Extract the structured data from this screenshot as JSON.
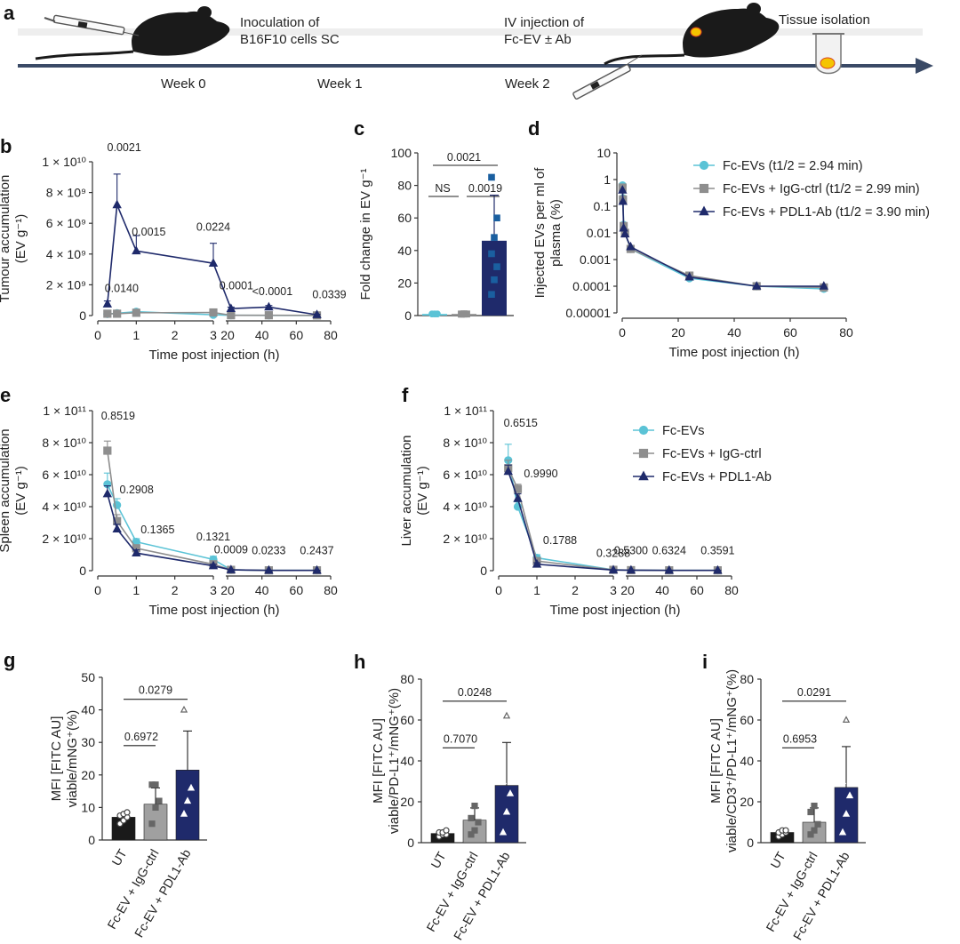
{
  "colors": {
    "cyan": "#5bc3d6",
    "grey": "#8e8e8e",
    "navy": "#1f2a6b",
    "dark": "#1a1a1a",
    "tumour": "#f5c400",
    "arrow": "#3a4a66"
  },
  "timeline": {
    "panel": "a",
    "events": [
      "Inoculation of",
      "B16F10 cells SC",
      "IV injection of",
      "Fc-EV ± Ab",
      "Tissue isolation"
    ],
    "weeks": [
      "Week 0",
      "Week 1",
      "Week 2"
    ]
  },
  "chart_data": [
    {
      "panel": "b",
      "type": "line",
      "ylabel": [
        "Tumour accumulation",
        "(EV g⁻¹)"
      ],
      "xlabel": "Time post injection (h)",
      "xticks": [
        "0",
        "1",
        "2",
        "3",
        "20",
        "40",
        "60",
        "80"
      ],
      "yticks": [
        "0",
        "2 × 10⁹",
        "4 × 10⁹",
        "6 × 10⁹",
        "8 × 10⁹",
        "1 × 10¹⁰"
      ],
      "ylim": [
        0,
        10000000000.0
      ],
      "x": [
        0.25,
        0.5,
        1,
        3,
        22,
        44,
        72
      ],
      "series": [
        {
          "name": "Fc-EVs",
          "color": "#5bc3d6",
          "values": [
            100000000.0,
            150000000.0,
            250000000.0,
            50000000.0,
            20000000.0,
            10000000.0,
            10000000.0
          ],
          "err": [
            50000000.0,
            70000000.0,
            150000000.0,
            60000000.0,
            10000000.0,
            10000000.0,
            10000000.0
          ]
        },
        {
          "name": "Fc-EVs + IgG-ctrl",
          "color": "#8e8e8e",
          "values": [
            120000000.0,
            120000000.0,
            180000000.0,
            200000000.0,
            20000000.0,
            20000000.0,
            10000000.0
          ],
          "err": [
            40000000.0,
            50000000.0,
            60000000.0,
            100000000.0,
            10000000.0,
            10000000.0,
            10000000.0
          ]
        },
        {
          "name": "Fc-EVs + PDL1-Ab",
          "color": "#1f2a6b",
          "values": [
            750000000.0,
            7200000000.0,
            4200000000.0,
            3400000000.0,
            450000000.0,
            550000000.0,
            50000000.0
          ],
          "err": [
            200000000.0,
            2000000000.0,
            1000000000.0,
            1300000000.0,
            100000000.0,
            100000000.0,
            30000000.0
          ]
        }
      ],
      "annotations": [
        "0.0140",
        "0.0021",
        "0.0015",
        "0.0224",
        "0.0001",
        "<0.0001",
        "0.0339"
      ]
    },
    {
      "panel": "c",
      "type": "bar",
      "ylabel": "Fold change in EV g⁻¹",
      "yticks": [
        "0",
        "20",
        "40",
        "60",
        "80",
        "100"
      ],
      "ylim": [
        0,
        100
      ],
      "values": [
        1,
        1,
        46
      ],
      "err": [
        0.3,
        0.3,
        28
      ],
      "colors": [
        "#5bc3d6",
        "#8e8e8e",
        "#1f2a6b"
      ],
      "points": [
        [
          1,
          1,
          1,
          1,
          1,
          1
        ],
        [
          0.8,
          0.9,
          1,
          1,
          1.1,
          0.9
        ],
        [
          13,
          22,
          30,
          38,
          48,
          60,
          85
        ]
      ],
      "brackets": [
        "0.0021",
        "NS",
        "0.0019"
      ]
    },
    {
      "panel": "d",
      "type": "line",
      "scale": "log",
      "ylabel": [
        "Injected EVs per ml of",
        "plasma (%)"
      ],
      "xlabel": "Time post injection (h)",
      "xticks": [
        "0",
        "20",
        "40",
        "60",
        "80"
      ],
      "yticks": [
        "0.00001",
        "0.0001",
        "0.001",
        "0.01",
        "0.1",
        "1",
        "10"
      ],
      "ylim": [
        1e-05,
        10
      ],
      "x": [
        0.1,
        0.25,
        0.5,
        1,
        3,
        24,
        48,
        72
      ],
      "series": [
        {
          "name": "Fc-EVs (t1/2 = 2.94 min)",
          "color": "#5bc3d6",
          "values": [
            0.6,
            0.2,
            0.02,
            0.01,
            0.0025,
            0.0002,
            0.0001,
            8e-05
          ]
        },
        {
          "name": "Fc-EVs + IgG-ctrl (t1/2 = 2.99 min)",
          "color": "#8e8e8e",
          "values": [
            0.5,
            0.18,
            0.018,
            0.01,
            0.0025,
            0.00025,
            0.0001,
            9e-05
          ]
        },
        {
          "name": "Fc-EVs + PDL1-Ab (t1/2 = 3.90 min)",
          "color": "#1f2a6b",
          "values": [
            0.4,
            0.15,
            0.015,
            0.009,
            0.003,
            0.00022,
            0.0001,
            0.0001
          ]
        }
      ]
    },
    {
      "panel": "e",
      "type": "line",
      "ylabel": [
        "Spleen accumulation",
        "(EV g⁻¹)"
      ],
      "xlabel": "Time post injection (h)",
      "xticks": [
        "0",
        "1",
        "2",
        "3",
        "20",
        "40",
        "60",
        "80"
      ],
      "yticks": [
        "0",
        "2 × 10¹⁰",
        "4 × 10¹⁰",
        "6 × 10¹⁰",
        "8 × 10¹⁰",
        "1 × 10¹¹"
      ],
      "ylim": [
        0,
        100000000000.0
      ],
      "x": [
        0.25,
        0.5,
        1,
        3,
        22,
        44,
        72
      ],
      "series": [
        {
          "name": "Fc-EVs",
          "color": "#5bc3d6",
          "values": [
            54000000000.0,
            41000000000.0,
            18000000000.0,
            7000000000.0,
            500000000.0,
            200000000.0,
            200000000.0
          ],
          "err": [
            7000000000.0,
            4000000000.0,
            2000000000.0,
            2000000000.0,
            200000000.0,
            100000000.0,
            100000000.0
          ]
        },
        {
          "name": "Fc-EVs + IgG-ctrl",
          "color": "#8e8e8e",
          "values": [
            75000000000.0,
            31000000000.0,
            14000000000.0,
            4000000000.0,
            500000000.0,
            200000000.0,
            200000000.0
          ],
          "err": [
            6000000000.0,
            4000000000.0,
            2000000000.0,
            1000000000.0,
            200000000.0,
            100000000.0,
            100000000.0
          ]
        },
        {
          "name": "Fc-EVs + PDL1-Ab",
          "color": "#1f2a6b",
          "values": [
            48000000000.0,
            26000000000.0,
            11000000000.0,
            3000000000.0,
            500000000.0,
            200000000.0,
            200000000.0
          ],
          "err": [
            5000000000.0,
            3000000000.0,
            2000000000.0,
            1000000000.0,
            200000000.0,
            100000000.0,
            100000000.0
          ]
        }
      ],
      "annotations": [
        "0.8519",
        "0.2908",
        "0.1365",
        "0.1321",
        "0.0009",
        "0.0233",
        "0.2437"
      ]
    },
    {
      "panel": "f",
      "type": "line",
      "ylabel": [
        "Liver accumulation",
        "(EV g⁻¹)"
      ],
      "xlabel": "Time post injection (h)",
      "xticks": [
        "0",
        "1",
        "2",
        "3",
        "20",
        "40",
        "60",
        "80"
      ],
      "yticks": [
        "0",
        "2 × 10¹⁰",
        "4 × 10¹⁰",
        "6 × 10¹⁰",
        "8 × 10¹⁰",
        "1 × 10¹¹"
      ],
      "ylim": [
        0,
        100000000000.0
      ],
      "x": [
        0.25,
        0.5,
        1,
        3,
        22,
        44,
        72
      ],
      "series": [
        {
          "name": "Fc-EVs",
          "color": "#5bc3d6",
          "values": [
            69000000000.0,
            40000000000.0,
            8000000000.0,
            500000000.0,
            300000000.0,
            200000000.0,
            200000000.0
          ],
          "err": [
            10000000000.0,
            3000000000.0,
            2000000000.0,
            200000000.0,
            100000000.0,
            100000000.0,
            100000000.0
          ]
        },
        {
          "name": "Fc-EVs + IgG-ctrl",
          "color": "#8e8e8e",
          "values": [
            64000000000.0,
            51000000000.0,
            6000000000.0,
            500000000.0,
            300000000.0,
            200000000.0,
            200000000.0
          ],
          "err": [
            5000000000.0,
            3000000000.0,
            1000000000.0,
            200000000.0,
            100000000.0,
            100000000.0,
            100000000.0
          ]
        },
        {
          "name": "Fc-EVs + PDL1-Ab",
          "color": "#1f2a6b",
          "values": [
            62000000000.0,
            45000000000.0,
            4000000000.0,
            400000000.0,
            300000000.0,
            200000000.0,
            200000000.0
          ],
          "err": [
            4000000000.0,
            3000000000.0,
            1000000000.0,
            200000000.0,
            100000000.0,
            100000000.0,
            100000000.0
          ]
        }
      ],
      "annotations": [
        "0.6515",
        "0.9990",
        "0.1788",
        "0.3288",
        "0.5300",
        "0.6324",
        "0.3591"
      ],
      "legend": [
        "Fc-EVs",
        "Fc-EVs + IgG-ctrl",
        "Fc-EVs + PDL1-Ab"
      ]
    },
    {
      "panel": "g",
      "type": "bar",
      "ylabel": [
        "MFI [FITC AU]",
        "viable/mNG⁺(%)"
      ],
      "categories": [
        "UT",
        "Fc-EV + IgG-ctrl",
        "Fc-EV + PDL1-Ab"
      ],
      "yticks": [
        "0",
        "10",
        "20",
        "30",
        "40",
        "50"
      ],
      "ylim": [
        0,
        50
      ],
      "values": [
        7,
        11,
        21.5
      ],
      "err": [
        1,
        5,
        12
      ],
      "points": [
        [
          5,
          6,
          7,
          7.5,
          8,
          8.5
        ],
        [
          5,
          10,
          12,
          17,
          17
        ],
        [
          8,
          12,
          16,
          40
        ]
      ],
      "brackets": [
        "0.6972",
        "0.0279"
      ]
    },
    {
      "panel": "h",
      "type": "bar",
      "ylabel": [
        "MFI [FITC AU]",
        "viable/PD-L1⁺/mNG⁺(%)"
      ],
      "categories": [
        "UT",
        "Fc-EV + IgG-ctrl",
        "Fc-EV + PDL1-Ab"
      ],
      "yticks": [
        "0",
        "20",
        "40",
        "60",
        "80"
      ],
      "ylim": [
        0,
        80
      ],
      "values": [
        4.5,
        11,
        28
      ],
      "err": [
        1,
        6,
        21
      ],
      "points": [
        [
          3,
          4,
          4,
          5,
          5,
          6
        ],
        [
          4,
          6,
          10,
          12,
          18
        ],
        [
          5,
          15,
          24,
          30,
          62
        ]
      ],
      "brackets": [
        "0.7070",
        "0.0248"
      ]
    },
    {
      "panel": "i",
      "type": "bar",
      "ylabel": [
        "MFI [FITC AU]",
        "viable/CD3⁺/PD-L1⁺/mNG⁺(%)"
      ],
      "categories": [
        "UT",
        "Fc-EV + IgG-ctrl",
        "Fc-EV + PDL1-Ab"
      ],
      "yticks": [
        "0",
        "20",
        "40",
        "60",
        "80"
      ],
      "ylim": [
        0,
        80
      ],
      "values": [
        5,
        10,
        27
      ],
      "err": [
        1,
        7,
        20
      ],
      "points": [
        [
          3,
          4,
          5,
          5,
          6,
          6
        ],
        [
          4,
          6,
          9,
          15,
          18
        ],
        [
          5,
          14,
          23,
          30,
          60
        ]
      ],
      "brackets": [
        "0.6953",
        "0.0291"
      ]
    }
  ]
}
